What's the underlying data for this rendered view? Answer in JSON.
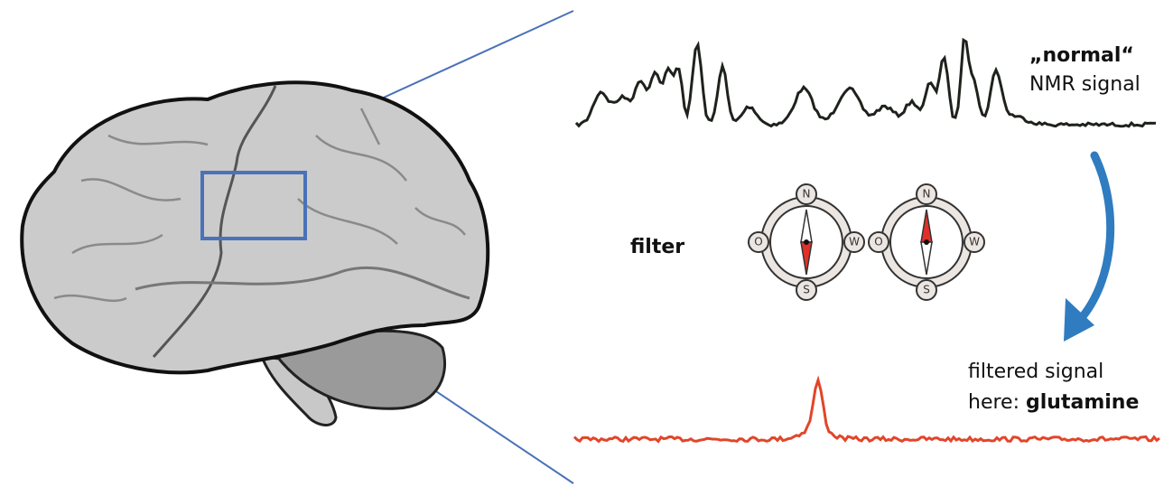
{
  "normal_signal": {
    "emphasis": "„normal“",
    "text": "NMR signal"
  },
  "filter": "filter",
  "compasses": [
    {
      "north": "N",
      "south": "S",
      "west": "O",
      "east": "W"
    },
    {
      "north": "N",
      "south": "S",
      "west": "O",
      "east": "W"
    }
  ],
  "filtered_signal": {
    "text": "filtered signal",
    "prefix": "here:",
    "emphasis": "glutamine"
  }
}
